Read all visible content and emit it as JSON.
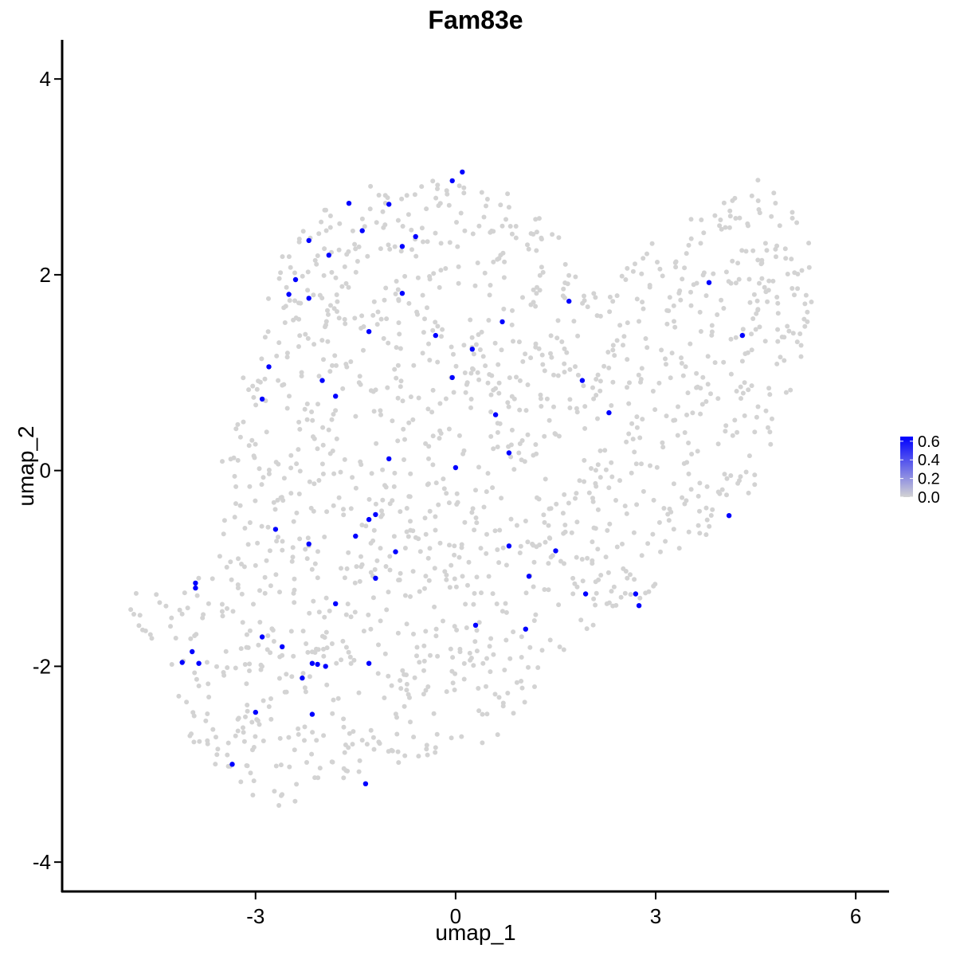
{
  "chart_data": {
    "type": "scatter",
    "title": "Fam83e",
    "xlabel": "umap_1",
    "ylabel": "umap_2",
    "xlim": [
      -5.9,
      6.5
    ],
    "ylim": [
      -4.3,
      4.4
    ],
    "x_ticks": [
      -3,
      0,
      3,
      6
    ],
    "y_ticks": [
      -4,
      -2,
      0,
      2,
      4
    ],
    "x_tick_labels": [
      "-3",
      "0",
      "3",
      "6"
    ],
    "y_tick_labels": [
      "-4",
      "-2",
      "0",
      "2",
      "4"
    ],
    "grid": false,
    "legend": {
      "placement": "right",
      "type": "colorbar",
      "labels": [
        "0.6",
        "0.4",
        "0.2",
        "0.0"
      ],
      "values": [
        0.6,
        0.4,
        0.2,
        0.0
      ],
      "min": 0.0,
      "max": 0.65,
      "low_color": "#d3d3d3",
      "high_color": "#0000ff"
    },
    "colors": {
      "background_points": "#d3d3d3",
      "expressing_points": "#0000ff"
    },
    "cloud_outline": [
      [
        -4.9,
        -1.3
      ],
      [
        -4.6,
        -1.1
      ],
      [
        -4.3,
        -1.3
      ],
      [
        -3.7,
        -0.9
      ],
      [
        -3.5,
        -0.3
      ],
      [
        -3.5,
        0.2
      ],
      [
        -3.3,
        0.7
      ],
      [
        -3.1,
        1.2
      ],
      [
        -2.9,
        1.7
      ],
      [
        -2.6,
        2.2
      ],
      [
        -2.2,
        2.6
      ],
      [
        -1.7,
        2.85
      ],
      [
        -1.0,
        2.95
      ],
      [
        -0.3,
        3.0
      ],
      [
        0.3,
        2.95
      ],
      [
        0.9,
        2.8
      ],
      [
        1.4,
        2.5
      ],
      [
        1.9,
        2.1
      ],
      [
        2.3,
        1.9
      ],
      [
        2.8,
        2.3
      ],
      [
        3.4,
        2.6
      ],
      [
        4.0,
        2.75
      ],
      [
        4.5,
        3.0
      ],
      [
        5.0,
        2.7
      ],
      [
        5.4,
        2.2
      ],
      [
        5.4,
        1.6
      ],
      [
        5.1,
        1.0
      ],
      [
        4.9,
        0.3
      ],
      [
        4.5,
        -0.2
      ],
      [
        3.8,
        -0.7
      ],
      [
        3.1,
        -1.1
      ],
      [
        2.6,
        -1.5
      ],
      [
        2.0,
        -1.6
      ],
      [
        1.5,
        -2.0
      ],
      [
        1.0,
        -2.5
      ],
      [
        0.5,
        -2.8
      ],
      [
        -0.2,
        -2.9
      ],
      [
        -0.8,
        -3.0
      ],
      [
        -1.4,
        -3.1
      ],
      [
        -2.0,
        -3.2
      ],
      [
        -2.5,
        -3.5
      ],
      [
        -3.1,
        -3.3
      ],
      [
        -3.7,
        -3.0
      ],
      [
        -4.1,
        -2.6
      ],
      [
        -4.2,
        -2.1
      ],
      [
        -4.6,
        -1.8
      ],
      [
        -4.9,
        -1.5
      ]
    ],
    "background_point_count": 1500,
    "expressing_points": [
      [
        0.1,
        3.05
      ],
      [
        -0.05,
        2.96
      ],
      [
        -1.6,
        2.73
      ],
      [
        -1.0,
        2.72
      ],
      [
        -1.4,
        2.45
      ],
      [
        -0.6,
        2.39
      ],
      [
        -2.2,
        2.35
      ],
      [
        -0.8,
        2.29
      ],
      [
        -1.9,
        2.2
      ],
      [
        -2.4,
        1.95
      ],
      [
        -2.5,
        1.8
      ],
      [
        -2.2,
        1.76
      ],
      [
        -0.8,
        1.81
      ],
      [
        1.7,
        1.73
      ],
      [
        3.8,
        1.92
      ],
      [
        0.7,
        1.52
      ],
      [
        -1.3,
        1.42
      ],
      [
        -0.3,
        1.38
      ],
      [
        4.3,
        1.38
      ],
      [
        0.25,
        1.24
      ],
      [
        -2.8,
        1.06
      ],
      [
        -2.0,
        0.92
      ],
      [
        -0.05,
        0.95
      ],
      [
        1.9,
        0.92
      ],
      [
        -1.8,
        0.76
      ],
      [
        -2.9,
        0.73
      ],
      [
        2.3,
        0.59
      ],
      [
        0.6,
        0.57
      ],
      [
        0.8,
        0.18
      ],
      [
        -1.0,
        0.12
      ],
      [
        0.0,
        0.03
      ],
      [
        -1.2,
        -0.45
      ],
      [
        -1.3,
        -0.5
      ],
      [
        4.1,
        -0.46
      ],
      [
        -2.7,
        -0.6
      ],
      [
        -1.5,
        -0.67
      ],
      [
        -2.2,
        -0.75
      ],
      [
        0.8,
        -0.77
      ],
      [
        -0.9,
        -0.83
      ],
      [
        1.5,
        -0.82
      ],
      [
        -1.2,
        -1.1
      ],
      [
        1.1,
        -1.08
      ],
      [
        -3.9,
        -1.15
      ],
      [
        -3.9,
        -1.2
      ],
      [
        1.95,
        -1.26
      ],
      [
        2.7,
        -1.26
      ],
      [
        2.75,
        -1.38
      ],
      [
        -1.8,
        -1.36
      ],
      [
        0.3,
        -1.58
      ],
      [
        1.05,
        -1.62
      ],
      [
        -2.9,
        -1.7
      ],
      [
        -2.6,
        -1.8
      ],
      [
        -3.95,
        -1.85
      ],
      [
        -4.1,
        -1.96
      ],
      [
        -3.85,
        -1.97
      ],
      [
        -2.15,
        -1.97
      ],
      [
        -2.07,
        -1.98
      ],
      [
        -1.95,
        -2.0
      ],
      [
        -1.3,
        -1.97
      ],
      [
        -2.3,
        -2.12
      ],
      [
        -3.0,
        -2.47
      ],
      [
        -2.15,
        -2.49
      ],
      [
        -3.35,
        -3.0
      ],
      [
        -1.35,
        -3.2
      ]
    ]
  }
}
